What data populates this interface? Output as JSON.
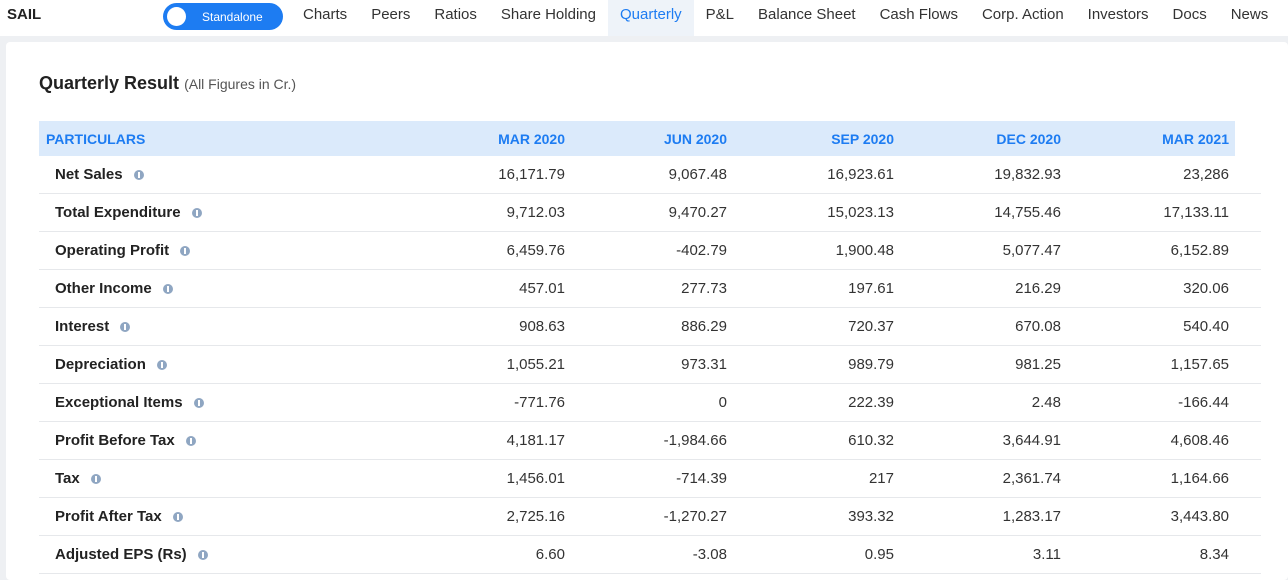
{
  "header": {
    "ticker": "SAIL",
    "toggle_label": "Standalone",
    "tabs": [
      "Charts",
      "Peers",
      "Ratios",
      "Share Holding",
      "Quarterly",
      "P&L",
      "Balance Sheet",
      "Cash Flows",
      "Corp. Action",
      "Investors",
      "Docs",
      "News"
    ],
    "active_tab": "Quarterly"
  },
  "section": {
    "title": "Quarterly Result",
    "subtitle": "(All Figures in Cr.)"
  },
  "table": {
    "headers": [
      "PARTICULARS",
      "MAR 2020",
      "JUN 2020",
      "SEP 2020",
      "DEC 2020",
      "MAR 2021"
    ],
    "rows": [
      {
        "label": "Net Sales",
        "values": [
          "16,171.79",
          "9,067.48",
          "16,923.61",
          "19,832.93",
          "23,286"
        ]
      },
      {
        "label": "Total Expenditure",
        "values": [
          "9,712.03",
          "9,470.27",
          "15,023.13",
          "14,755.46",
          "17,133.11"
        ]
      },
      {
        "label": "Operating Profit",
        "values": [
          "6,459.76",
          "-402.79",
          "1,900.48",
          "5,077.47",
          "6,152.89"
        ]
      },
      {
        "label": "Other Income",
        "values": [
          "457.01",
          "277.73",
          "197.61",
          "216.29",
          "320.06"
        ]
      },
      {
        "label": "Interest",
        "values": [
          "908.63",
          "886.29",
          "720.37",
          "670.08",
          "540.40"
        ]
      },
      {
        "label": "Depreciation",
        "values": [
          "1,055.21",
          "973.31",
          "989.79",
          "981.25",
          "1,157.65"
        ]
      },
      {
        "label": "Exceptional Items",
        "values": [
          "-771.76",
          "0",
          "222.39",
          "2.48",
          "-166.44"
        ]
      },
      {
        "label": "Profit Before Tax",
        "values": [
          "4,181.17",
          "-1,984.66",
          "610.32",
          "3,644.91",
          "4,608.46"
        ]
      },
      {
        "label": "Tax",
        "values": [
          "1,456.01",
          "-714.39",
          "217",
          "2,361.74",
          "1,164.66"
        ]
      },
      {
        "label": "Profit After Tax",
        "values": [
          "2,725.16",
          "-1,270.27",
          "393.32",
          "1,283.17",
          "3,443.80"
        ]
      },
      {
        "label": "Adjusted EPS (Rs)",
        "values": [
          "6.60",
          "-3.08",
          "0.95",
          "3.11",
          "8.34"
        ]
      }
    ]
  }
}
